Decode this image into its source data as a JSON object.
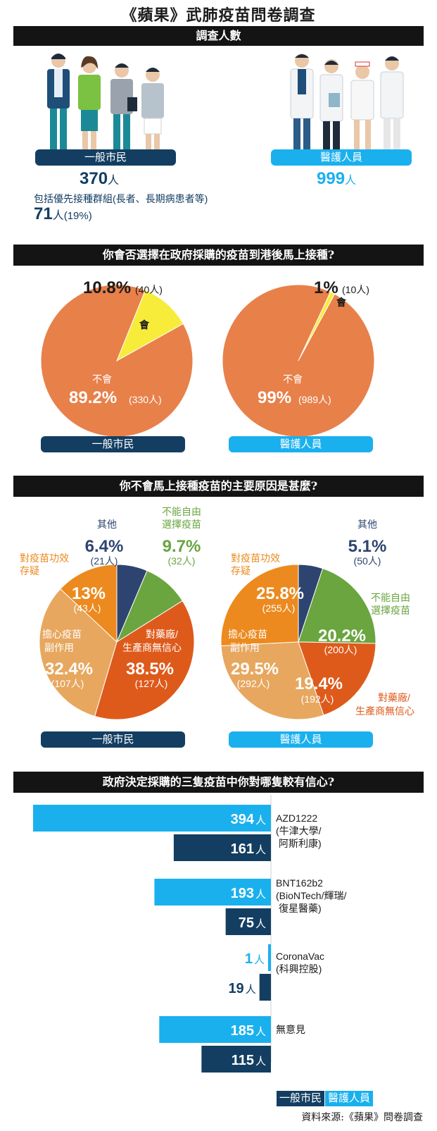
{
  "title": "《蘋果》武肺疫苗問卷調查",
  "section1": {
    "header": "調查人數",
    "public_label": "一般市民",
    "public_count": "370",
    "public_unit": "人",
    "priority_note": "包括優先接種群組(長者、長期病患者等)",
    "priority_count": "71",
    "priority_unit": "人",
    "priority_pct": "(19%)",
    "medical_label": "醫護人員",
    "medical_count": "999",
    "medical_unit": "人"
  },
  "section2": {
    "header": "你會否選擇在政府採購的疫苗到港後馬上接種?",
    "public": {
      "yes_label": "會",
      "yes_pct": "10.8%",
      "yes_n": "(40人)",
      "no_label": "不會",
      "no_pct": "89.2%",
      "no_n": "(330人)",
      "group": "一般市民"
    },
    "medical": {
      "yes_label": "會",
      "yes_pct": "1%",
      "yes_n": "(10人)",
      "no_label": "不會",
      "no_pct": "99%",
      "no_n": "(989人)",
      "group": "醫護人員"
    }
  },
  "section3": {
    "header": "你不會馬上接種疫苗的主要原因是甚麼?",
    "public": {
      "group": "一般市民",
      "slices": [
        {
          "label1": "其他",
          "label2": "",
          "pct": "6.4%",
          "n": "(21人)"
        },
        {
          "label1": "不能自由",
          "label2": "選擇疫苗",
          "pct": "9.7%",
          "n": "(32人)"
        },
        {
          "label1": "對藥廠/",
          "label2": "生產商無信心",
          "pct": "38.5%",
          "n": "(127人)"
        },
        {
          "label1": "擔心疫苗",
          "label2": "副作用",
          "pct": "32.4%",
          "n": "(107人)"
        },
        {
          "label1": "對疫苗功效",
          "label2": "存疑",
          "pct": "13%",
          "n": "(43人)"
        }
      ]
    },
    "medical": {
      "group": "醫護人員",
      "slices": [
        {
          "label1": "其他",
          "label2": "",
          "pct": "5.1%",
          "n": "(50人)"
        },
        {
          "label1": "不能自由",
          "label2": "選擇疫苗",
          "pct": "20.2%",
          "n": "(200人)"
        },
        {
          "label1": "對藥廠/",
          "label2": "生產商無信心",
          "pct": "19.4%",
          "n": "(192人)"
        },
        {
          "label1": "擔心疫苗",
          "label2": "副作用",
          "pct": "29.5%",
          "n": "(292人)"
        },
        {
          "label1": "對疫苗功效",
          "label2": "存疑",
          "pct": "25.8%",
          "n": "(255人)"
        }
      ]
    }
  },
  "section4": {
    "header": "政府決定採購的三隻疫苗中你對哪隻較有信心?",
    "unit": "人",
    "legend_public": "一般市民",
    "legend_medical": "醫護人員",
    "vaccines": [
      {
        "line1": "AZD1222",
        "line2": "(牛津大學/",
        "line3": "阿斯利康)"
      },
      {
        "line1": "BNT162b2",
        "line2": "(BioNTech/輝瑞/",
        "line3": "復星醫藥)"
      },
      {
        "line1": "CoronaVac",
        "line2": "(科興控股)",
        "line3": ""
      },
      {
        "line1": "無意見",
        "line2": "",
        "line3": ""
      }
    ]
  },
  "source": "資料來源:《蘋果》問卷調查",
  "colors": {
    "navy": "#133e62",
    "sky": "#1ab0ee",
    "salmon": "#e8804a",
    "yellow": "#f8ec3a",
    "slate": "#2e4470",
    "green": "#6aa540",
    "darkorange": "#de5a1b",
    "tan": "#e7a75f",
    "orange": "#ec8a1f"
  },
  "chart_data": [
    {
      "type": "pie",
      "title": "你會否選擇在政府採購的疫苗到港後馬上接種?",
      "group": "一般市民",
      "categories": [
        "會",
        "不會"
      ],
      "values": [
        10.8,
        89.2
      ],
      "counts": [
        40,
        330
      ]
    },
    {
      "type": "pie",
      "title": "你會否選擇在政府採購的疫苗到港後馬上接種?",
      "group": "醫護人員",
      "categories": [
        "會",
        "不會"
      ],
      "values": [
        1,
        99
      ],
      "counts": [
        10,
        989
      ]
    },
    {
      "type": "pie",
      "title": "你不會馬上接種疫苗的主要原因是甚麼?",
      "group": "一般市民",
      "categories": [
        "其他",
        "不能自由選擇疫苗",
        "對藥廠/生產商無信心",
        "擔心疫苗副作用",
        "對疫苗功效存疑"
      ],
      "values": [
        6.4,
        9.7,
        38.5,
        32.4,
        13
      ],
      "counts": [
        21,
        32,
        127,
        107,
        43
      ]
    },
    {
      "type": "pie",
      "title": "你不會馬上接種疫苗的主要原因是甚麼?",
      "group": "醫護人員",
      "categories": [
        "其他",
        "不能自由選擇疫苗",
        "對藥廠/生產商無信心",
        "擔心疫苗副作用",
        "對疫苗功效存疑"
      ],
      "values": [
        5.1,
        20.2,
        19.4,
        29.5,
        25.8
      ],
      "counts": [
        50,
        200,
        192,
        292,
        255
      ]
    },
    {
      "type": "bar",
      "title": "政府決定採購的三隻疫苗中你對哪隻較有信心?",
      "categories": [
        "AZD1222",
        "BNT162b2",
        "CoronaVac",
        "無意見"
      ],
      "series": [
        {
          "name": "醫護人員",
          "values": [
            394,
            193,
            1,
            185
          ]
        },
        {
          "name": "一般市民",
          "values": [
            161,
            75,
            19,
            115
          ]
        }
      ]
    }
  ]
}
